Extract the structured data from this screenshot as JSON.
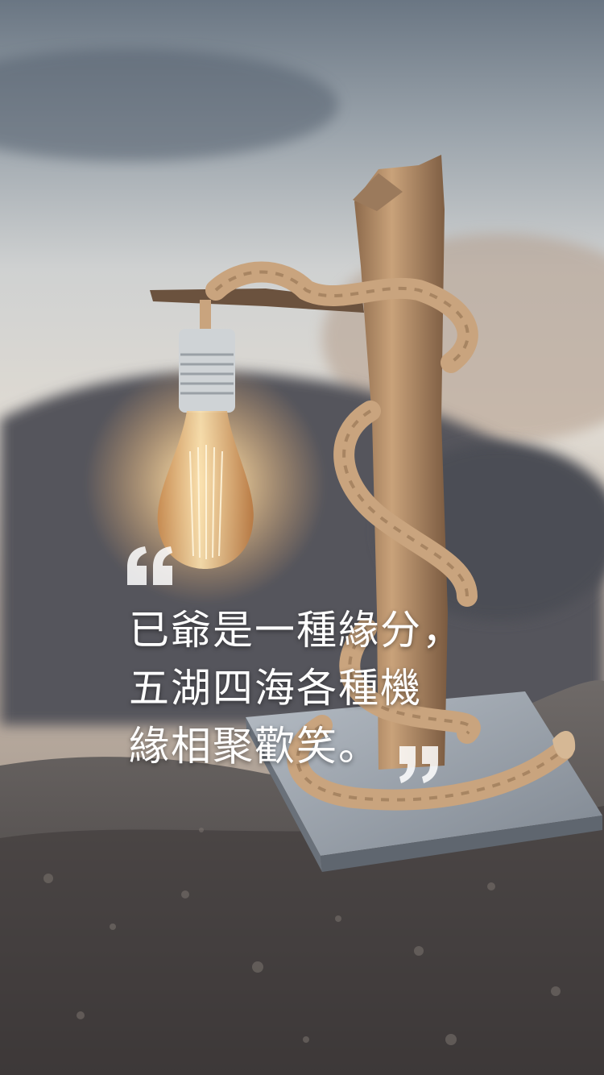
{
  "wallpaper": {
    "quote_lines": [
      "已爺是一種緣分，",
      "五湖四海各種機",
      "緣相聚歡笑。"
    ]
  },
  "icons": {
    "open_quote": "open-quote-icon",
    "close_quote": "close-quote-icon"
  },
  "colors": {
    "sky_top": "#6f7c88",
    "sand": "#d9d6cf",
    "rock": "#4a4b52",
    "rope": "#c9a47e",
    "wood": "#b58d66",
    "bulb_glow": "#ffd79a",
    "base": "#9aa2ac",
    "text": "#ffffff"
  }
}
